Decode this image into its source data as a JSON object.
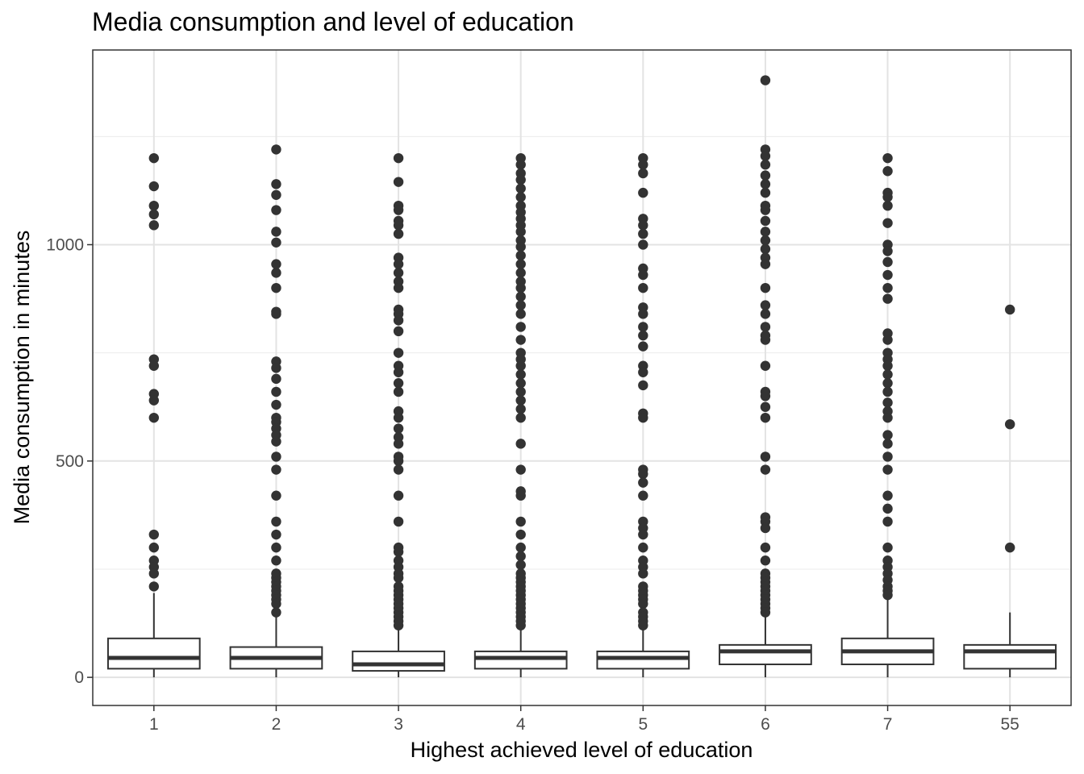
{
  "chart_data": {
    "type": "box",
    "title": "Media consumption and level of education",
    "xlabel": "Highest achieved level of education",
    "ylabel": "Media consumption in minutes",
    "categories": [
      "1",
      "2",
      "3",
      "4",
      "5",
      "6",
      "7",
      "55"
    ],
    "y_ticks": [
      0,
      500,
      1000
    ],
    "y_tick_labels": [
      "0",
      "500",
      "1000"
    ],
    "ylim": [
      -65,
      1450
    ],
    "grid": true,
    "theme": "bw",
    "box_color": "#333333",
    "point_color": "#333333",
    "boxes": [
      {
        "category": "1",
        "min": 0,
        "q1": 20,
        "median": 45,
        "q3": 90,
        "max": 195,
        "outliers": [
          1200,
          1135,
          1090,
          1070,
          1045,
          735,
          720,
          655,
          640,
          600,
          330,
          300,
          270,
          255,
          240,
          210
        ]
      },
      {
        "category": "2",
        "min": 0,
        "q1": 20,
        "median": 45,
        "q3": 70,
        "max": 150,
        "outliers": [
          1220,
          1140,
          1115,
          1080,
          1030,
          1005,
          955,
          935,
          900,
          845,
          840,
          730,
          715,
          690,
          660,
          630,
          600,
          590,
          575,
          560,
          545,
          510,
          480,
          420,
          360,
          330,
          300,
          270,
          240,
          230,
          220,
          210,
          200,
          190,
          180,
          170,
          150
        ]
      },
      {
        "category": "3",
        "min": 0,
        "q1": 15,
        "median": 30,
        "q3": 60,
        "max": 120,
        "outliers": [
          1200,
          1145,
          1090,
          1080,
          1055,
          1045,
          1025,
          970,
          955,
          935,
          915,
          900,
          850,
          840,
          825,
          800,
          750,
          720,
          705,
          680,
          660,
          615,
          600,
          575,
          555,
          540,
          510,
          500,
          480,
          420,
          360,
          300,
          290,
          270,
          255,
          240,
          230,
          210,
          200,
          190,
          180,
          170,
          160,
          150,
          140,
          130,
          120
        ]
      },
      {
        "category": "4",
        "min": 0,
        "q1": 20,
        "median": 45,
        "q3": 60,
        "max": 120,
        "outliers": [
          1200,
          1185,
          1165,
          1150,
          1130,
          1110,
          1090,
          1075,
          1060,
          1045,
          1030,
          1010,
          995,
          975,
          955,
          935,
          915,
          900,
          880,
          860,
          840,
          810,
          780,
          750,
          735,
          720,
          700,
          680,
          660,
          640,
          620,
          600,
          540,
          480,
          430,
          420,
          360,
          330,
          300,
          280,
          260,
          240,
          230,
          220,
          210,
          200,
          190,
          180,
          170,
          160,
          150,
          140,
          130,
          120
        ]
      },
      {
        "category": "5",
        "min": 0,
        "q1": 20,
        "median": 45,
        "q3": 60,
        "max": 120,
        "outliers": [
          1200,
          1185,
          1165,
          1120,
          1060,
          1045,
          1025,
          1000,
          945,
          930,
          900,
          855,
          840,
          810,
          790,
          765,
          720,
          705,
          675,
          610,
          600,
          480,
          470,
          450,
          420,
          360,
          345,
          330,
          300,
          270,
          255,
          240,
          210,
          200,
          190,
          180,
          170,
          150,
          140,
          130,
          120
        ]
      },
      {
        "category": "6",
        "min": 0,
        "q1": 30,
        "median": 60,
        "q3": 75,
        "max": 140,
        "outliers": [
          1380,
          1220,
          1205,
          1185,
          1160,
          1140,
          1120,
          1090,
          1080,
          1055,
          1030,
          1010,
          990,
          970,
          955,
          900,
          860,
          840,
          810,
          790,
          780,
          720,
          660,
          650,
          625,
          600,
          510,
          480,
          370,
          360,
          345,
          300,
          270,
          240,
          230,
          220,
          210,
          200,
          190,
          180,
          170,
          160,
          150
        ]
      },
      {
        "category": "7",
        "min": 0,
        "q1": 30,
        "median": 60,
        "q3": 90,
        "max": 180,
        "outliers": [
          1200,
          1170,
          1120,
          1110,
          1090,
          1050,
          1000,
          985,
          960,
          930,
          900,
          875,
          795,
          780,
          750,
          735,
          720,
          700,
          680,
          660,
          635,
          615,
          600,
          560,
          540,
          510,
          480,
          420,
          390,
          360,
          300,
          270,
          255,
          240,
          225,
          210,
          200,
          190
        ]
      },
      {
        "category": "55",
        "min": 0,
        "q1": 20,
        "median": 60,
        "q3": 75,
        "max": 150,
        "outliers": [
          850,
          585,
          300
        ]
      }
    ]
  }
}
